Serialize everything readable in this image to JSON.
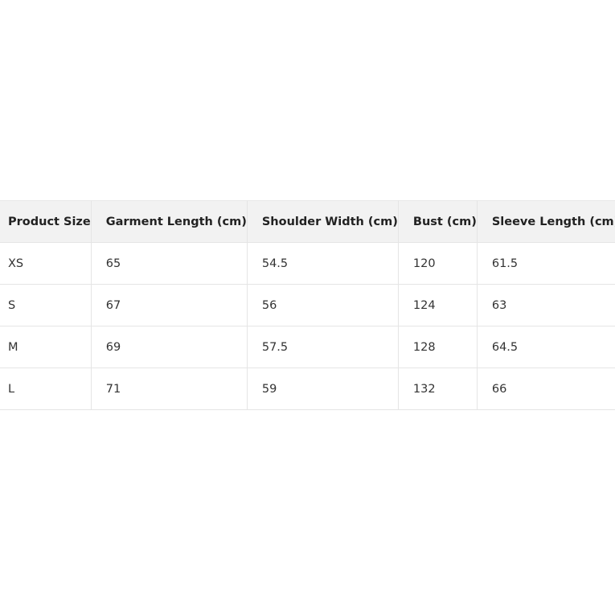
{
  "table": {
    "headers": [
      "Product Size",
      "Garment Length (cm)",
      "Shoulder Width (cm)",
      "Bust (cm)",
      "Sleeve Length (cm)"
    ],
    "rows": [
      [
        "XS",
        "65",
        "54.5",
        "120",
        "61.5"
      ],
      [
        "S",
        "67",
        "56",
        "124",
        "63"
      ],
      [
        "M",
        "69",
        "57.5",
        "128",
        "64.5"
      ],
      [
        "L",
        "71",
        "59",
        "132",
        "66"
      ]
    ]
  }
}
